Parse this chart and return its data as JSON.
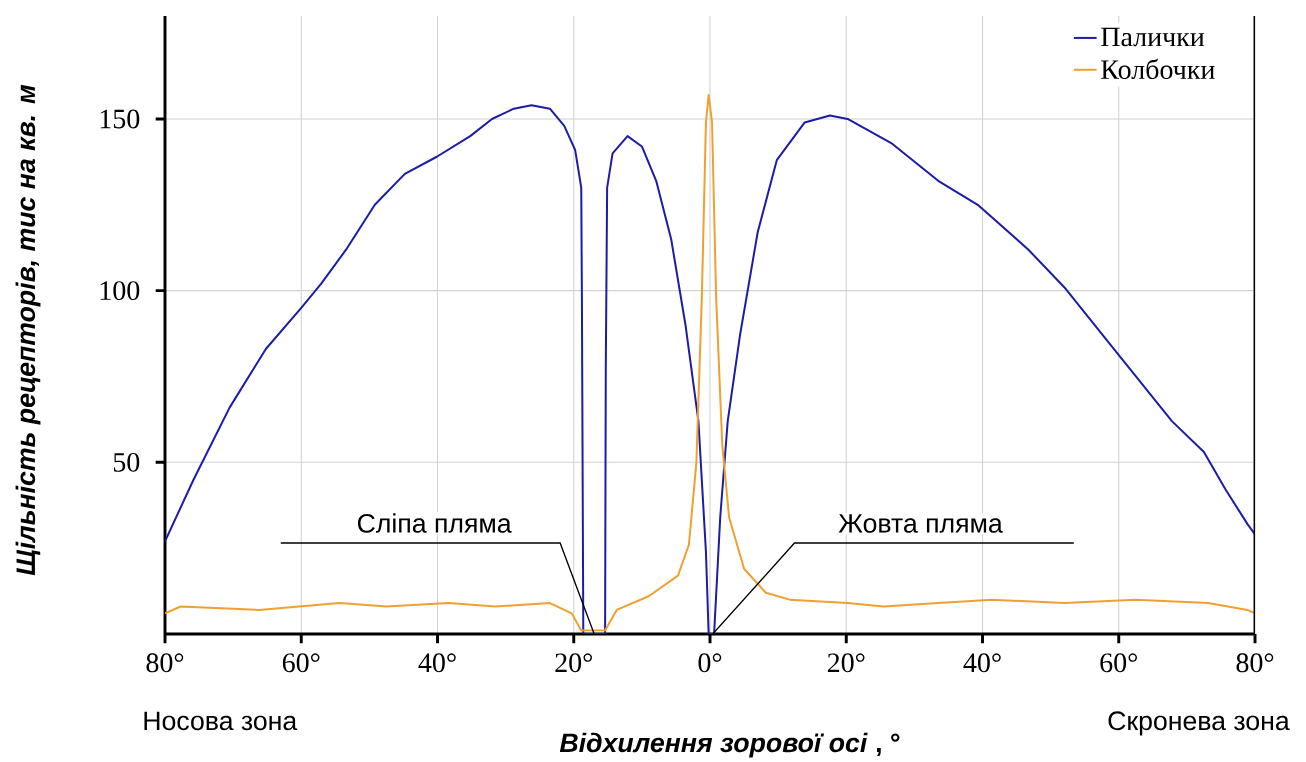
{
  "chart_data": {
    "type": "line",
    "xlabel": "*Відхилення зорової осі* , °",
    "ylabel": "Щільність рецепторів, тис на кв. м",
    "series": [
      {
        "name": "Палички",
        "color": "#1c1ca8",
        "x": [
          -80,
          -75.8,
          -70.5,
          -65.2,
          -60,
          -57.1,
          -53.4,
          -49.2,
          -44.8,
          -40.1,
          -35.2,
          -32,
          -28.8,
          -26.2,
          -23.5,
          -21.4,
          -19.8,
          -18.9,
          -18.8,
          -18.6,
          -15.4,
          -15.3,
          -15.1,
          -14.3,
          -12.1,
          -10,
          -7.9,
          -5.7,
          -3.6,
          -1.7,
          -0.6,
          -0.2,
          0.6,
          1.5,
          2.6,
          4.4,
          7,
          9.8,
          13.9,
          17.6,
          20.2,
          26.6,
          33.5,
          39.3,
          46.7,
          52,
          59.3,
          67.8,
          72.5,
          75.7,
          78.9,
          80
        ],
        "values": [
          27,
          45,
          66,
          83,
          95,
          102,
          112,
          125,
          134,
          139,
          145,
          150,
          153,
          154,
          153,
          148,
          141,
          130,
          96,
          0,
          0,
          77,
          130,
          140,
          145,
          142,
          132,
          115,
          90,
          62,
          24,
          0,
          0,
          34,
          62,
          87,
          117,
          138,
          149,
          151,
          150,
          143,
          132,
          125,
          112,
          101,
          83,
          62,
          53,
          42,
          32,
          29
        ]
      },
      {
        "name": "Колбочки",
        "color": "#f0a030",
        "x": [
          -80,
          -77.7,
          -66.2,
          -54.4,
          -47.5,
          -38.4,
          -31.5,
          -23.5,
          -20.3,
          -18.9,
          -15.4,
          -13.7,
          -9,
          -4.7,
          -3.1,
          -2,
          -1.2,
          -0.6,
          -0.2,
          0.3,
          0.9,
          1.8,
          2.8,
          5,
          8.2,
          11.7,
          20.2,
          25.5,
          33.5,
          41.4,
          52,
          62.5,
          73.1,
          78.9,
          80
        ],
        "values": [
          6,
          8,
          7,
          9,
          8,
          9,
          8,
          9,
          6,
          1,
          1,
          7,
          11,
          17,
          26,
          50,
          98,
          149,
          157,
          149,
          98,
          55,
          34,
          19,
          12,
          10,
          9,
          8,
          9,
          10,
          9,
          10,
          9,
          7,
          6
        ]
      }
    ],
    "xlim": [
      -80,
      80
    ],
    "xticks": [
      {
        "value": -80,
        "label": "80°"
      },
      {
        "value": -60,
        "label": "60°"
      },
      {
        "value": -40,
        "label": "40°"
      },
      {
        "value": -20,
        "label": "20°"
      },
      {
        "value": 0,
        "label": "0°"
      },
      {
        "value": 20,
        "label": "20°"
      },
      {
        "value": 40,
        "label": "40°"
      },
      {
        "value": 60,
        "label": "60°"
      },
      {
        "value": 80,
        "label": "80°"
      }
    ],
    "ylim": [
      0,
      180
    ],
    "yticks": [
      50,
      100,
      150
    ],
    "grid": true,
    "legend": "top right",
    "annotations": [
      {
        "text": "Сліпа пляма",
        "x": -17,
        "y": 0
      },
      {
        "text": "Жовта пляма",
        "x": 0.4,
        "y": 0
      },
      "Носова зона",
      "Скронева зона"
    ]
  }
}
